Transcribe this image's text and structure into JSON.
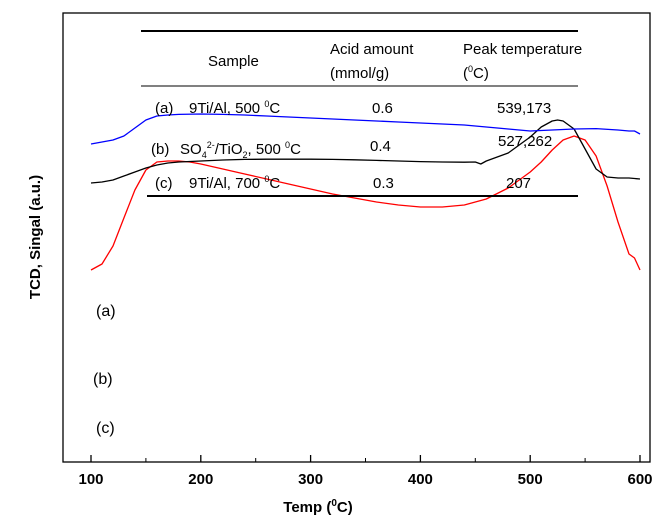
{
  "chart_data": {
    "type": "line",
    "xlabel": "Temp (",
    "xlabel_sup": "0",
    "xlabel_end": "C)",
    "ylabel": "TCD, Singal (a.u.)",
    "xlim": [
      100,
      600
    ],
    "x_ticks": [
      "100",
      "200",
      "300",
      "400",
      "500",
      "600"
    ],
    "grid": false,
    "series": [
      {
        "name": "(a)",
        "color": "#ff0000",
        "x": [
          100,
          110,
          120,
          130,
          140,
          150,
          160,
          170,
          180,
          190,
          200,
          220,
          240,
          260,
          280,
          300,
          320,
          340,
          360,
          380,
          400,
          420,
          440,
          460,
          480,
          500,
          510,
          520,
          530,
          540,
          550,
          560,
          570,
          580,
          590,
          595,
          600
        ],
        "y": [
          0.22,
          0.25,
          0.34,
          0.48,
          0.62,
          0.72,
          0.76,
          0.765,
          0.765,
          0.76,
          0.75,
          0.725,
          0.7,
          0.675,
          0.65,
          0.625,
          0.6,
          0.58,
          0.56,
          0.545,
          0.535,
          0.535,
          0.545,
          0.575,
          0.63,
          0.71,
          0.76,
          0.82,
          0.87,
          0.89,
          0.87,
          0.79,
          0.64,
          0.46,
          0.3,
          0.28,
          0.22
        ]
      },
      {
        "name": "(b)",
        "color": "#000000",
        "x": [
          100,
          110,
          120,
          130,
          140,
          150,
          160,
          170,
          180,
          200,
          220,
          240,
          260,
          280,
          300,
          320,
          340,
          360,
          380,
          400,
          420,
          440,
          450,
          455,
          460,
          480,
          500,
          510,
          520,
          525,
          530,
          540,
          550,
          560,
          570,
          580,
          590,
          600
        ],
        "y": [
          0.11,
          0.115,
          0.125,
          0.145,
          0.165,
          0.185,
          0.2,
          0.21,
          0.215,
          0.22,
          0.225,
          0.228,
          0.229,
          0.229,
          0.229,
          0.228,
          0.226,
          0.223,
          0.22,
          0.217,
          0.215,
          0.214,
          0.215,
          0.205,
          0.22,
          0.26,
          0.34,
          0.39,
          0.42,
          0.425,
          0.42,
          0.38,
          0.28,
          0.18,
          0.14,
          0.135,
          0.135,
          0.13
        ]
      },
      {
        "name": "(c)",
        "color": "#0000ff",
        "x": [
          100,
          110,
          120,
          130,
          140,
          150,
          160,
          170,
          180,
          200,
          220,
          240,
          260,
          280,
          300,
          320,
          340,
          360,
          380,
          400,
          420,
          440,
          460,
          480,
          500,
          520,
          540,
          560,
          580,
          590,
          595,
          600
        ],
        "y": [
          -0.02,
          -0.01,
          0.0,
          0.02,
          0.06,
          0.1,
          0.12,
          0.125,
          0.128,
          0.13,
          0.128,
          0.125,
          0.12,
          0.115,
          0.11,
          0.105,
          0.1,
          0.095,
          0.09,
          0.085,
          0.08,
          0.075,
          0.065,
          0.055,
          0.045,
          0.05,
          0.055,
          0.057,
          0.05,
          0.045,
          0.045,
          0.03
        ]
      }
    ],
    "table": {
      "headers": [
        {
          "line1": "Sample",
          "line2": ""
        },
        {
          "line1": "Acid amount",
          "line2": "(mmol/g)"
        },
        {
          "line1": "Peak temperature",
          "line2": "(",
          "line2_sup": "0",
          "line2_end": "C)"
        }
      ],
      "rows": [
        {
          "label": "(a)",
          "sample_parts": [
            {
              "t": "9Ti/Al, 500 ",
              "k": "n"
            },
            {
              "t": "0",
              "k": "sup"
            },
            {
              "t": "C",
              "k": "n"
            }
          ],
          "acid": "0.6",
          "peak": "539,173"
        },
        {
          "label": "(b)",
          "sample_parts": [
            {
              "t": "SO",
              "k": "n"
            },
            {
              "t": "4",
              "k": "sub"
            },
            {
              "t": "2-",
              "k": "sup"
            },
            {
              "t": "/TiO",
              "k": "n"
            },
            {
              "t": "2",
              "k": "sub"
            },
            {
              "t": ", 500 ",
              "k": "n"
            },
            {
              "t": "0",
              "k": "sup"
            },
            {
              "t": "C",
              "k": "n"
            }
          ],
          "acid": "0.4",
          "peak": "527,262"
        },
        {
          "label": "(c)",
          "sample_parts": [
            {
              "t": "9Ti/Al, 700 ",
              "k": "n"
            },
            {
              "t": "0",
              "k": "sup"
            },
            {
              "t": "C",
              "k": "n"
            }
          ],
          "acid": "0.3",
          "peak": "207"
        }
      ]
    }
  }
}
